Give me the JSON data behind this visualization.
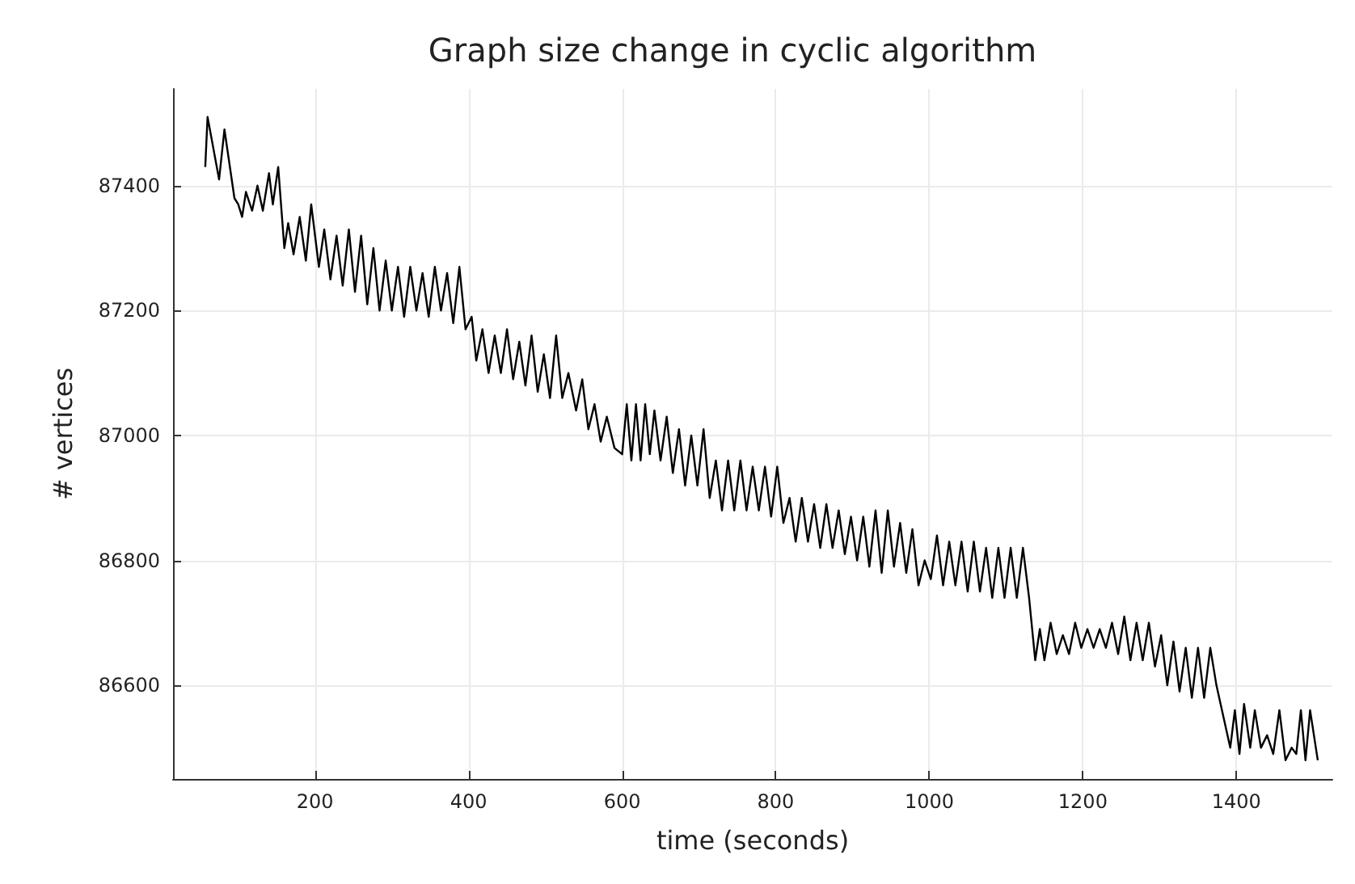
{
  "chart_data": {
    "type": "line",
    "title": "Graph size change in cyclic algorithm",
    "xlabel": "time (seconds)",
    "ylabel": "# vertices",
    "x": [
      57,
      60,
      75,
      82,
      95,
      100,
      105,
      110,
      118,
      125,
      132,
      140,
      145,
      152,
      160,
      165,
      172,
      180,
      188,
      195,
      205,
      212,
      220,
      228,
      236,
      244,
      252,
      260,
      268,
      276,
      284,
      292,
      300,
      308,
      316,
      324,
      332,
      340,
      348,
      356,
      364,
      372,
      380,
      388,
      396,
      404,
      410,
      418,
      426,
      434,
      442,
      450,
      458,
      466,
      474,
      482,
      490,
      498,
      506,
      514,
      522,
      530,
      540,
      548,
      556,
      564,
      572,
      580,
      590,
      600,
      606,
      612,
      618,
      624,
      630,
      636,
      642,
      650,
      658,
      666,
      674,
      682,
      690,
      698,
      706,
      714,
      722,
      730,
      738,
      746,
      754,
      762,
      770,
      778,
      786,
      794,
      802,
      810,
      818,
      826,
      834,
      842,
      850,
      858,
      866,
      874,
      882,
      890,
      898,
      906,
      914,
      922,
      930,
      938,
      946,
      954,
      962,
      970,
      978,
      986,
      994,
      1002,
      1010,
      1018,
      1026,
      1034,
      1042,
      1050,
      1058,
      1066,
      1074,
      1082,
      1090,
      1098,
      1106,
      1114,
      1122,
      1130,
      1138,
      1144,
      1150,
      1158,
      1166,
      1174,
      1182,
      1190,
      1198,
      1206,
      1214,
      1222,
      1230,
      1238,
      1246,
      1254,
      1262,
      1270,
      1278,
      1286,
      1294,
      1302,
      1310,
      1318,
      1326,
      1334,
      1342,
      1350,
      1358,
      1366,
      1374,
      1392,
      1398,
      1404,
      1410,
      1418,
      1424,
      1432,
      1440,
      1448,
      1456,
      1464,
      1472,
      1478,
      1484,
      1490,
      1496,
      1506
    ],
    "series": [
      {
        "color": "#000000",
        "values": [
          87430,
          87510,
          87410,
          87490,
          87380,
          87370,
          87350,
          87390,
          87360,
          87400,
          87360,
          87420,
          87370,
          87430,
          87300,
          87340,
          87290,
          87350,
          87280,
          87370,
          87270,
          87330,
          87250,
          87320,
          87240,
          87330,
          87230,
          87320,
          87210,
          87300,
          87200,
          87280,
          87200,
          87270,
          87190,
          87270,
          87200,
          87260,
          87190,
          87270,
          87200,
          87260,
          87180,
          87270,
          87170,
          87190,
          87120,
          87170,
          87100,
          87160,
          87100,
          87170,
          87090,
          87150,
          87080,
          87160,
          87070,
          87130,
          87060,
          87160,
          87060,
          87100,
          87040,
          87090,
          87010,
          87050,
          86990,
          87030,
          86980,
          86970,
          87050,
          86960,
          87050,
          86960,
          87050,
          86970,
          87040,
          86960,
          87030,
          86940,
          87010,
          86920,
          87000,
          86920,
          87010,
          86900,
          86960,
          86880,
          86960,
          86880,
          86960,
          86880,
          86950,
          86880,
          86950,
          86870,
          86950,
          86860,
          86900,
          86830,
          86900,
          86830,
          86890,
          86820,
          86890,
          86820,
          86880,
          86810,
          86870,
          86800,
          86870,
          86790,
          86880,
          86780,
          86880,
          86790,
          86860,
          86780,
          86850,
          86760,
          86800,
          86770,
          86840,
          86760,
          86830,
          86760,
          86830,
          86750,
          86830,
          86750,
          86820,
          86740,
          86820,
          86740,
          86820,
          86740,
          86820,
          86740,
          86640,
          86690,
          86640,
          86700,
          86650,
          86680,
          86650,
          86700,
          86660,
          86690,
          86660,
          86690,
          86660,
          86700,
          86650,
          86710,
          86640,
          86700,
          86640,
          86700,
          86630,
          86680,
          86600,
          86670,
          86590,
          86660,
          86580,
          86660,
          86580,
          86660,
          86600,
          86500,
          86560,
          86490,
          86570,
          86500,
          86560,
          86500,
          86520,
          86490,
          86560,
          86480,
          86500,
          86490,
          86560,
          86480,
          86560,
          86480
        ]
      }
    ],
    "xlim": [
      15,
      1525
    ],
    "ylim": [
      86450,
      87555
    ],
    "xticks": [
      200,
      400,
      600,
      800,
      1000,
      1200,
      1400
    ],
    "yticks": [
      86600,
      86800,
      87000,
      87200,
      87400
    ],
    "grid": true,
    "marker": "none",
    "line_style": "solid"
  }
}
